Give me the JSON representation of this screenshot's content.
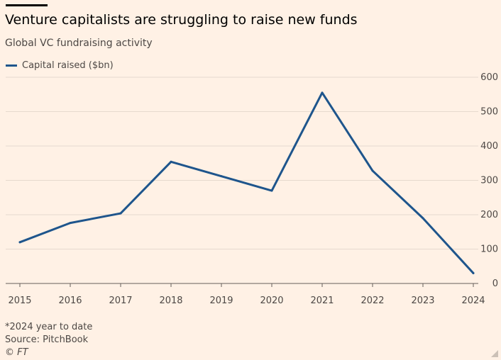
{
  "title": "Venture capitalists are struggling to raise new funds",
  "subtitle": "Global VC fundraising activity",
  "legend_label": "Capital raised ($bn)",
  "footnote": "*2024 year to date",
  "source": "Source: PitchBook",
  "copyright": "© FT",
  "colors": {
    "line": "#1e558c",
    "grid": "#e6d9ce",
    "text": "#4d4845",
    "background": "#fff1e5"
  },
  "chart_data": {
    "type": "line",
    "title": "Venture capitalists are struggling to raise new funds",
    "subtitle": "Global VC fundraising activity",
    "x": [
      "2015",
      "2016",
      "2017",
      "2018",
      "2019",
      "2020",
      "2021",
      "2022",
      "2023",
      "2024"
    ],
    "series": [
      {
        "name": "Capital raised ($bn)",
        "values": [
          120,
          176,
          204,
          354,
          312,
          270,
          555,
          328,
          190,
          30
        ]
      }
    ],
    "yticks": [
      0,
      100,
      200,
      300,
      400,
      500,
      600
    ],
    "ylim": [
      0,
      600
    ],
    "y_axis_side": "right",
    "grid": true,
    "legend": "top-left"
  }
}
